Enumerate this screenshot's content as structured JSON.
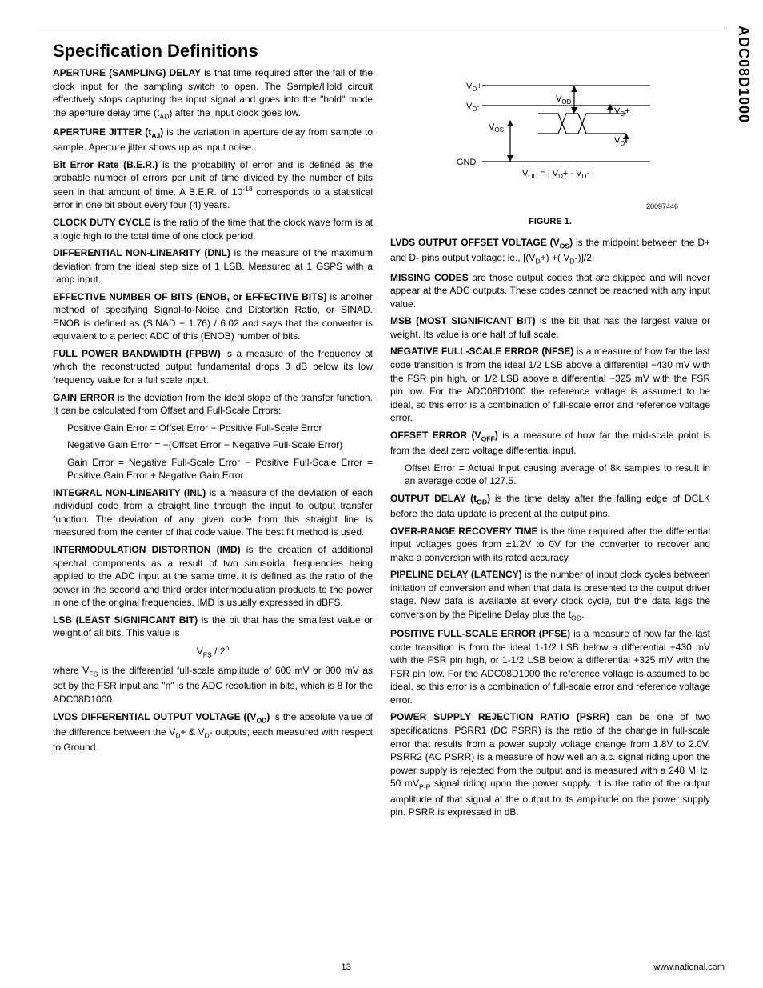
{
  "part_number": "ADC08D1000",
  "title": "Specification Definitions",
  "page_number": "13",
  "site": "www.national.com",
  "figure": {
    "caption": "FIGURE 1.",
    "id_label": "20097446",
    "labels": {
      "vdp_high": "V",
      "vdp_sub": "D",
      "vdn_high": "V",
      "vdn_sub": "D",
      "vos": "V",
      "vos_sub": "OS",
      "vod": "V",
      "vod_sub": "OD",
      "vdp2": "V",
      "vdp2_sub": "D",
      "vdn2": "V",
      "vdn2_sub": "D",
      "gnd": "GND",
      "formula": "V",
      "formula_rest": " = | V",
      "formula_rest2": "+ - V",
      "formula_rest3": "- |"
    },
    "style": {
      "stroke": "#000000",
      "stroke_width": 1.2,
      "font_size": 11
    }
  },
  "left_col": [
    {
      "term": "APERTURE (SAMPLING) DELAY",
      "body": " is that time required after the fall of the clock input for the sampling switch to open. The Sample/Hold circuit effectively stops capturing the input signal and goes into the \"hold\" mode the aperture delay time (t",
      "sub": "AD",
      "tail": ") after the input clock goes low."
    },
    {
      "term": "APERTURE JITTER (t",
      "termsub": "AJ",
      "termtail": ")",
      "body": " is the variation in aperture delay from sample to sample. Aperture jitter shows up as input noise."
    },
    {
      "term": "Bit Error Rate (B.E.R.)",
      "body": " is the probability of error and is defined as the probable number of errors per unit of time divided by the number of bits seen in that amount of time. A B.E.R. of 10",
      "sup": "-18",
      "tail": " corresponds to a statistical error in one bit about every four (4) years."
    },
    {
      "term": "CLOCK DUTY CYCLE",
      "body": " is the ratio of the time that the clock wave form is at a logic high to the total time of one clock period."
    },
    {
      "term": "DIFFERENTIAL NON-LINEARITY (DNL)",
      "body": " is the measure of the maximum deviation from the ideal step size of 1 LSB. Measured at 1 GSPS with a ramp input."
    },
    {
      "term": "EFFECTIVE NUMBER OF BITS (ENOB, or EFFECTIVE BITS)",
      "body": " is another method of specifying Signal-to-Noise and Distortion Ratio, or SINAD. ENOB is defined as (SINAD − 1.76) / 6.02 and says that the converter is equivalent to a perfect ADC of this (ENOB) number of bits."
    },
    {
      "term": "FULL POWER BANDWIDTH (FPBW)",
      "body": " is a measure of the frequency at which the reconstructed output fundamental drops 3 dB below its low frequency value for a full scale input."
    },
    {
      "term": "GAIN ERROR",
      "body": " is the deviation from the ideal slope of the transfer function. It can be calculated from Offset and Full-Scale Errors:"
    }
  ],
  "gain_lines": [
    "Positive Gain Error = Offset Error − Positive Full-Scale Error",
    "Negative Gain Error = −(Offset Error − Negative Full-Scale Error)",
    "Gain Error = Negative Full-Scale Error − Positive Full-Scale Error = Positive Gain Error + Negative Gain Error"
  ],
  "left_col2": [
    {
      "term": "INTEGRAL NON-LINEARITY (INL)",
      "body": " is a measure of the deviation of each individual code from a straight line through the input to output transfer function. The deviation of any given code from this straight line is measured from the center of that code value. The best fit method is used."
    },
    {
      "term": "INTERMODULATION DISTORTION (IMD)",
      "body": " is the creation of additional spectral components as a result of two sinusoidal frequencies being applied to the ADC input at the same time. it is defined as the ratio of the power in the second and third order intermodulation products to the power in one of the original frequencies. IMD is usually expressed in dBFS."
    },
    {
      "term": "LSB (LEAST SIGNIFICANT BIT)",
      "body": " is the bit that has the smallest value or weight of all bits. This value is"
    }
  ],
  "lsb_formula_pre": "V",
  "lsb_formula_sub": "FS",
  "lsb_formula_mid": " / 2",
  "lsb_formula_sup": "n",
  "lsb_tail_pre": "where V",
  "lsb_tail_sub": "FS",
  "lsb_tail_body": " is the differential full-scale amplitude of 600 mV or 800 mV as set by the FSR input and \"n\" is the ADC resolution in bits, which is 8 for the ADC08D1000.",
  "lvds_diff": {
    "term": "LVDS DIFFERENTIAL OUTPUT VOLTAGE ((V",
    "termsub": "OD",
    "termtail": ")",
    "body": " is the absolute value of the difference between the V",
    "sub1": "D",
    "mid": "+ & V",
    "sub2": "D",
    "tail": "- outputs; each measured with respect to Ground."
  },
  "right_col": [
    {
      "term": "LVDS OUTPUT OFFSET VOLTAGE (V",
      "termsub": "OS",
      "termtail": ")",
      "body": " is the midpoint between the D+ and D- pins output voltage; ie., [(V",
      "sub1": "D",
      "mid": "+) +( V",
      "sub2": "D",
      "tail": "-)]/2."
    },
    {
      "term": "MISSING CODES",
      "body": " are those output codes that are skipped and will never appear at the ADC outputs. These codes cannot be reached with any input value."
    },
    {
      "term": "MSB (MOST SIGNIFICANT BIT)",
      "body": " is the bit that has the largest value or weight. Its value is one half of full scale."
    },
    {
      "term": "NEGATIVE FULL-SCALE ERROR (NFSE)",
      "body": " is a measure of how far the last code transition is from the ideal 1/2 LSB above a differential −430 mV with the FSR pin high, or 1/2 LSB above a differential −325 mV with the FSR pin low. For the ADC08D1000 the reference voltage is assumed to be ideal, so this error is a combination of full-scale error and reference voltage error."
    },
    {
      "term": "OFFSET ERROR (V",
      "termsub": "OFF",
      "termtail": ")",
      "body": " is a measure of how far the mid-scale point is from the ideal zero voltage differential input."
    }
  ],
  "offset_line": "Offset Error = Actual Input causing average of 8k samples to result in an average code of 127.5.",
  "right_col2": [
    {
      "term": "OUTPUT DELAY (t",
      "termsub": "OD",
      "termtail": ")",
      "body": " is the time delay after the falling edge of DCLK before the data update is present at the output pins."
    },
    {
      "term": "OVER-RANGE RECOVERY TIME",
      "body": " is the time required after the differential input voltages goes from ±1.2V to 0V for the converter to recover and make a conversion with its rated accuracy."
    },
    {
      "term": "PIPELINE DELAY (LATENCY)",
      "body": " is the number of input clock cycles between initiation of conversion and when that data is presented to the output driver stage. New data is available at every clock cycle, but the data lags the conversion by the Pipeline Delay plus the t",
      "sub": "OD",
      "tail": "."
    },
    {
      "term": "POSITIVE FULL-SCALE ERROR (PFSE)",
      "body": " is a measure of how far the last code transition is from the ideal 1-1/2 LSB below a differential +430 mV with the FSR pin high, or 1-1/2 LSB below a differential +325 mV with the FSR pin low. For the ADC08D1000 the reference voltage is assumed to be ideal, so this error is a combination of full-scale error and reference voltage error."
    },
    {
      "term": "POWER SUPPLY REJECTION RATIO (PSRR)",
      "body": " can be one of two specifications. PSRR1 (DC PSRR) is the ratio of the change in full-scale error that results from a power supply voltage change from 1.8V to 2.0V. PSRR2 (AC PSRR) is a measure of how well an a.c. signal riding upon the power supply is rejected from the output and is measured with a 248 MHz, 50 mV",
      "sub": "P-P",
      "tail": " signal riding upon the power supply. It is the ratio of the output amplitude of that signal at the output to its amplitude on the power supply pin. PSRR is expressed in dB."
    }
  ]
}
